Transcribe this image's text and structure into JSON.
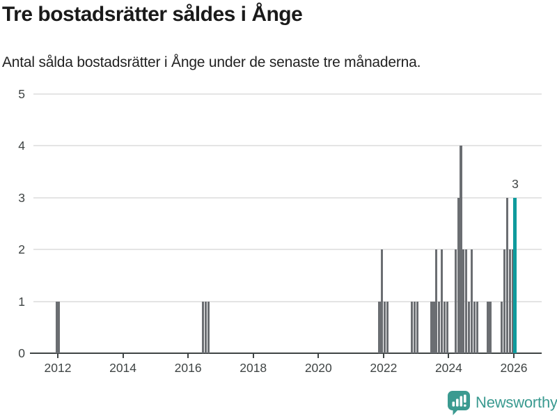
{
  "title": "Tre bostadsrätter såldes i Ånge",
  "subtitle": "Antal sålda bostadsrätter i Ånge under de senaste tre månaderna.",
  "footer": {
    "brand": "Newsworthy"
  },
  "colors": {
    "title_text": "#1a1a1a",
    "axis_and_labels": "#3f4444",
    "gridline": "#e4e4e4",
    "bar": "#6b6e72",
    "highlight_bar": "#0f9b9d",
    "logo": "#3a9a90",
    "background": "#ffffff"
  },
  "chart_data": {
    "type": "bar",
    "title": "Tre bostadsrätter såldes i Ånge",
    "subtitle": "Antal sålda bostadsrätter i Ånge under de senaste tre månaderna.",
    "x_unit": "month",
    "ylim": [
      0,
      5
    ],
    "yticks": [
      0,
      1,
      2,
      3,
      4,
      5
    ],
    "xticks": [
      2012,
      2014,
      2016,
      2018,
      2020,
      2022,
      2024,
      2026
    ],
    "grid": "horizontal",
    "legend": "none",
    "bars": [
      {
        "month": "2011-12",
        "value": 1
      },
      {
        "month": "2012-01",
        "value": 1
      },
      {
        "month": "2016-06",
        "value": 1
      },
      {
        "month": "2016-07",
        "value": 1
      },
      {
        "month": "2016-08",
        "value": 1
      },
      {
        "month": "2021-11",
        "value": 1
      },
      {
        "month": "2021-12",
        "value": 2
      },
      {
        "month": "2022-01",
        "value": 1
      },
      {
        "month": "2022-02",
        "value": 1
      },
      {
        "month": "2022-11",
        "value": 1
      },
      {
        "month": "2022-12",
        "value": 1
      },
      {
        "month": "2023-01",
        "value": 1
      },
      {
        "month": "2023-06",
        "value": 1
      },
      {
        "month": "2023-07",
        "value": 1
      },
      {
        "month": "2023-08",
        "value": 2
      },
      {
        "month": "2023-09",
        "value": 1
      },
      {
        "month": "2023-10",
        "value": 2
      },
      {
        "month": "2023-11",
        "value": 1
      },
      {
        "month": "2023-12",
        "value": 1
      },
      {
        "month": "2024-03",
        "value": 2
      },
      {
        "month": "2024-04",
        "value": 3
      },
      {
        "month": "2024-05",
        "value": 4
      },
      {
        "month": "2024-06",
        "value": 2
      },
      {
        "month": "2024-07",
        "value": 2
      },
      {
        "month": "2024-08",
        "value": 1
      },
      {
        "month": "2024-09",
        "value": 2
      },
      {
        "month": "2024-10",
        "value": 1
      },
      {
        "month": "2024-11",
        "value": 1
      },
      {
        "month": "2025-03",
        "value": 1
      },
      {
        "month": "2025-04",
        "value": 1
      },
      {
        "month": "2025-08",
        "value": 1
      },
      {
        "month": "2025-09",
        "value": 2
      },
      {
        "month": "2025-10",
        "value": 3
      },
      {
        "month": "2025-11",
        "value": 2
      },
      {
        "month": "2025-12",
        "value": 2
      }
    ],
    "highlight_bar": {
      "month": "2026-01",
      "value": 3,
      "data_label": "3"
    }
  }
}
